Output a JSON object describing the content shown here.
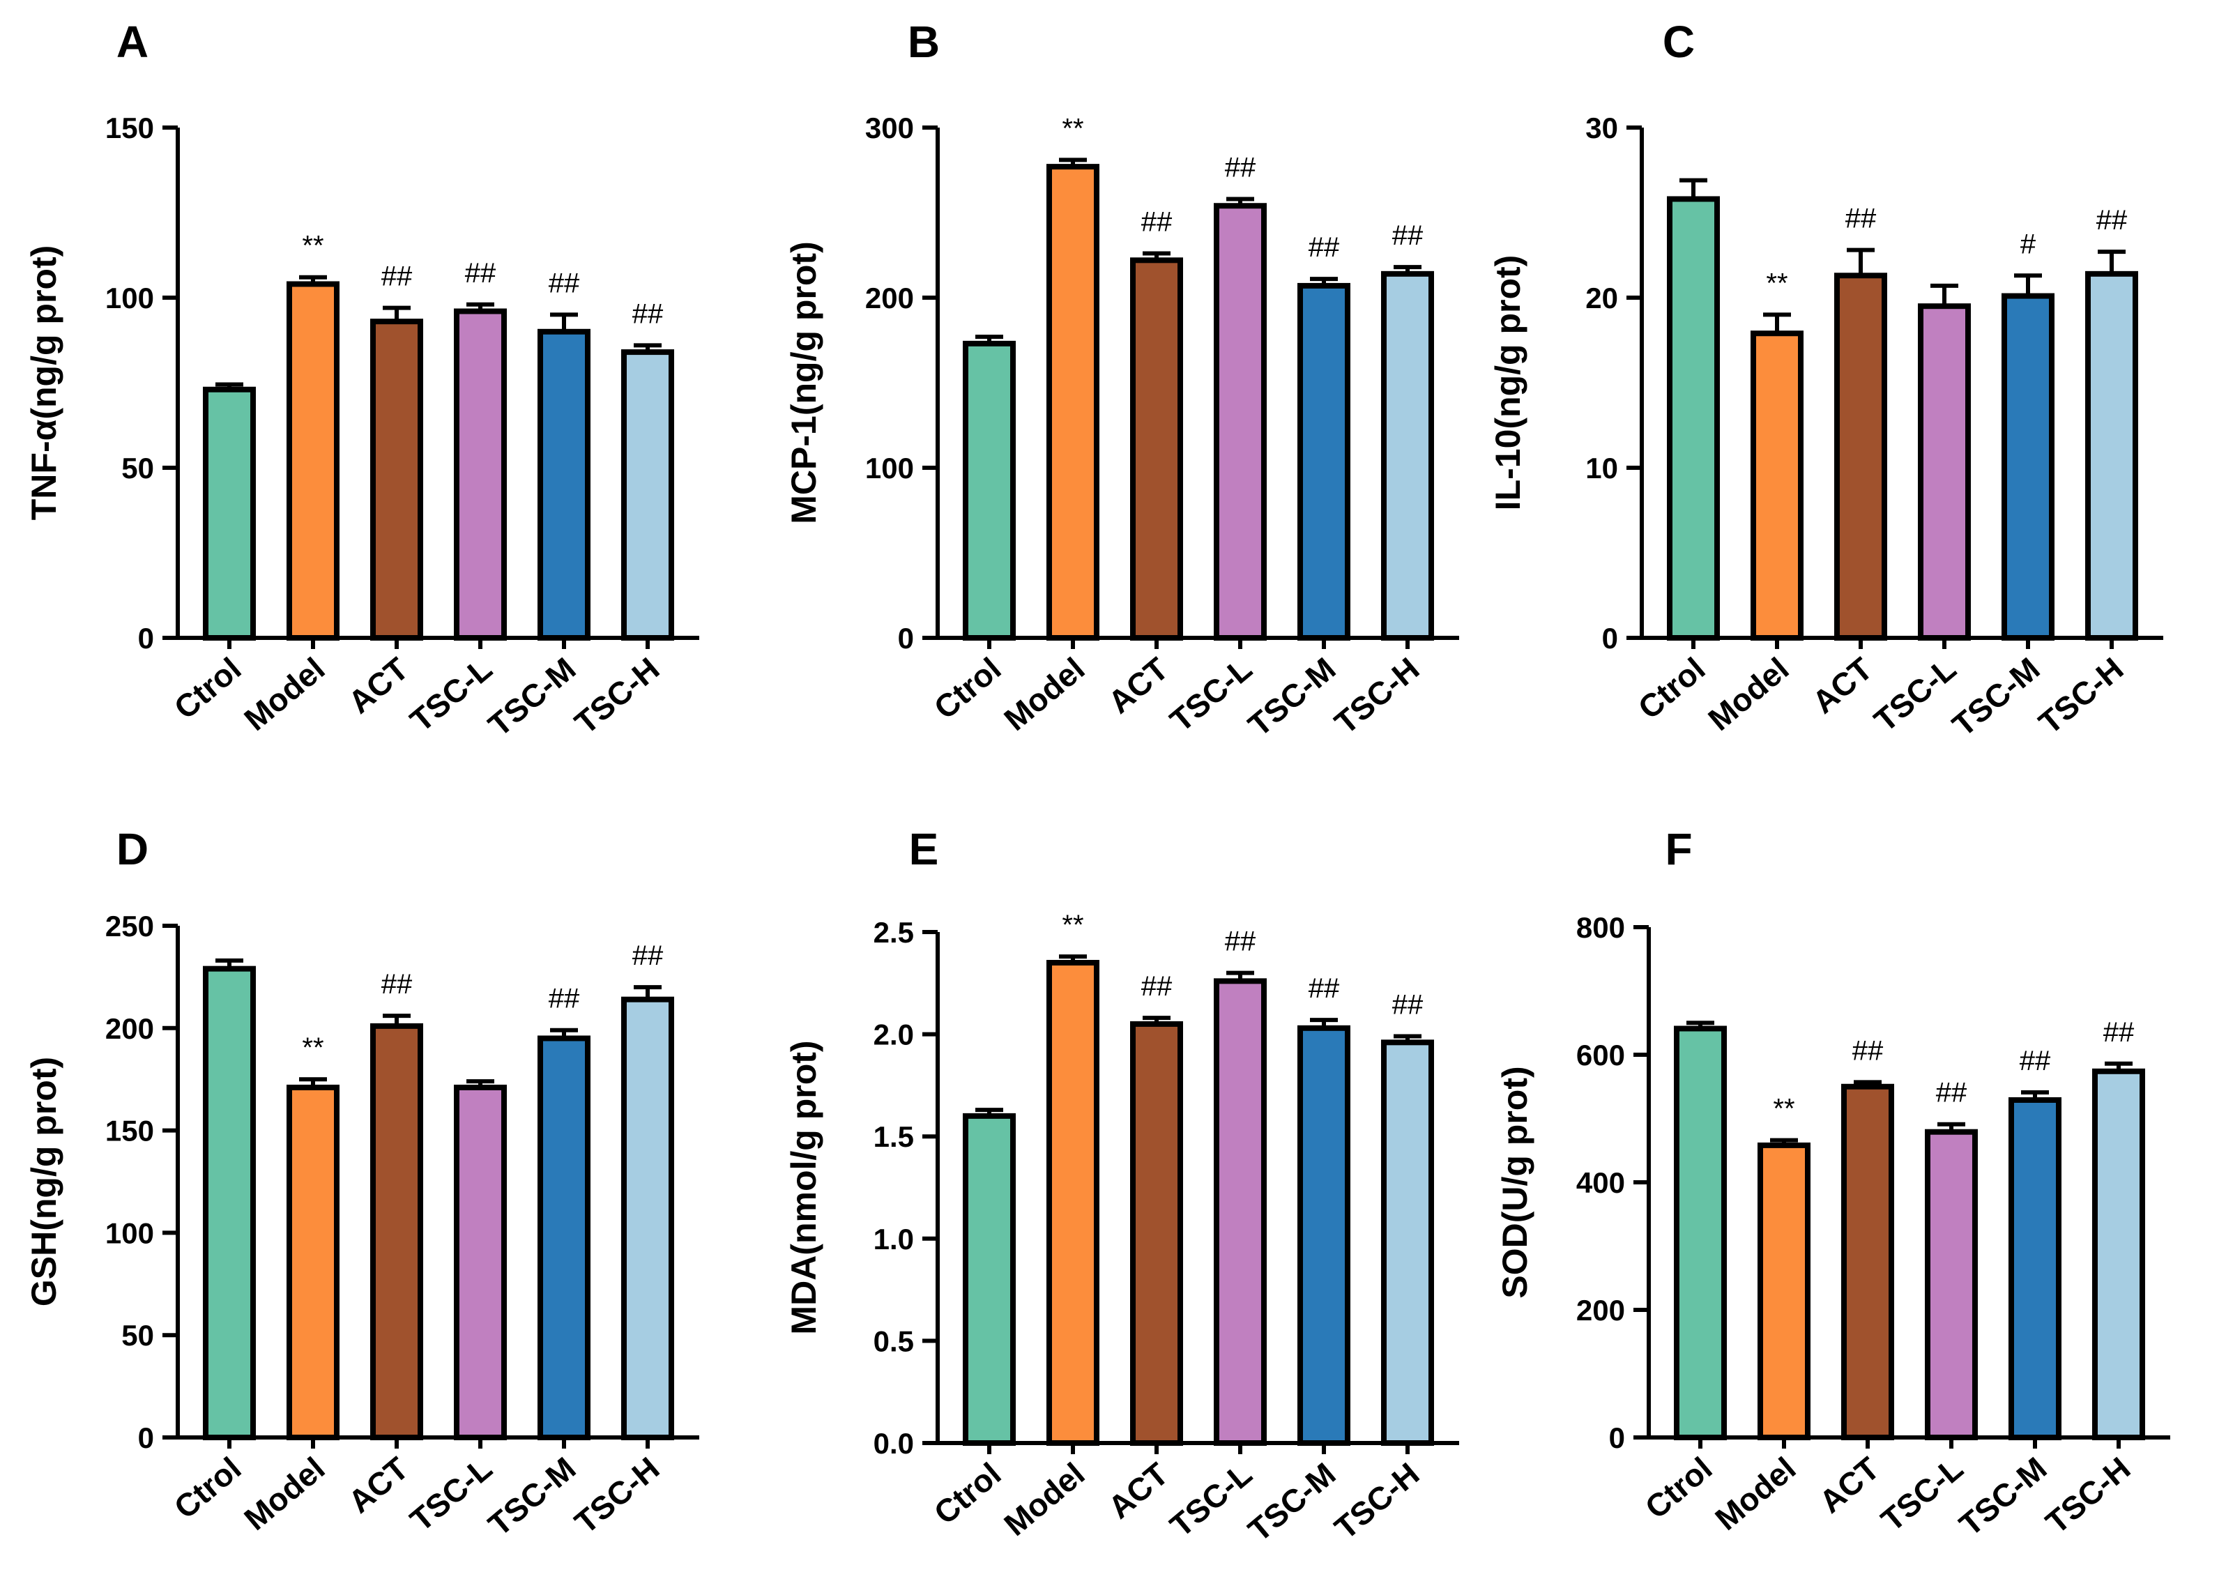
{
  "chart_data": [
    {
      "panel": "A",
      "type": "bar",
      "categories": [
        "Ctrol",
        "Model",
        "ACT",
        "TSC-L",
        "TSC-M",
        "TSC-H"
      ],
      "values": [
        73,
        104,
        93,
        96,
        90,
        84
      ],
      "errors": [
        1.5,
        2,
        4,
        2,
        5,
        2
      ],
      "annotations": [
        "",
        "**",
        "##",
        "##",
        "##",
        "##"
      ],
      "ylabel": "TNF-α(ng/g prot)",
      "ylim": [
        0,
        150
      ],
      "yticks": [
        0,
        50,
        100,
        150
      ]
    },
    {
      "panel": "B",
      "type": "bar",
      "categories": [
        "Ctrol",
        "Model",
        "ACT",
        "TSC-L",
        "TSC-M",
        "TSC-H"
      ],
      "values": [
        173,
        277,
        222,
        254,
        207,
        214
      ],
      "errors": [
        4,
        4,
        4,
        4,
        4,
        4
      ],
      "annotations": [
        "",
        "**",
        "##",
        "##",
        "##",
        "##"
      ],
      "ylabel": "MCP-1(ng/g prot)",
      "ylim": [
        0,
        300
      ],
      "yticks": [
        0,
        100,
        200,
        300
      ]
    },
    {
      "panel": "C",
      "type": "bar",
      "categories": [
        "Ctrol",
        "Model",
        "ACT",
        "TSC-L",
        "TSC-M",
        "TSC-H"
      ],
      "values": [
        25.8,
        17.9,
        21.3,
        19.5,
        20.1,
        21.4
      ],
      "errors": [
        1.1,
        1.1,
        1.5,
        1.2,
        1.2,
        1.3
      ],
      "annotations": [
        "",
        "**",
        "##",
        "",
        "#",
        "##"
      ],
      "ylabel": "IL-10(ng/g prot)",
      "ylim": [
        0,
        30
      ],
      "yticks": [
        0,
        10,
        20,
        30
      ]
    },
    {
      "panel": "D",
      "type": "bar",
      "categories": [
        "Ctrol",
        "Model",
        "ACT",
        "TSC-L",
        "TSC-M",
        "TSC-H"
      ],
      "values": [
        229,
        171,
        201,
        171,
        195,
        214
      ],
      "errors": [
        4,
        4,
        5,
        3,
        4,
        6
      ],
      "annotations": [
        "",
        "**",
        "##",
        "",
        "##",
        "##"
      ],
      "ylabel": "GSH(ng/g prot)",
      "ylim": [
        0,
        250
      ],
      "yticks": [
        0,
        50,
        100,
        150,
        200,
        250
      ]
    },
    {
      "panel": "E",
      "type": "bar",
      "categories": [
        "Ctrol",
        "Model",
        "ACT",
        "TSC-L",
        "TSC-M",
        "TSC-H"
      ],
      "values": [
        1.6,
        2.35,
        2.05,
        2.26,
        2.03,
        1.96
      ],
      "errors": [
        0.03,
        0.03,
        0.03,
        0.04,
        0.04,
        0.03
      ],
      "annotations": [
        "",
        "**",
        "##",
        "##",
        "##",
        "##"
      ],
      "ylabel": "MDA(nmol/g prot)",
      "ylim": [
        0,
        2.5
      ],
      "yticks": [
        0.0,
        0.5,
        1.0,
        1.5,
        2.0,
        2.5
      ]
    },
    {
      "panel": "F",
      "type": "bar",
      "categories": [
        "Ctrol",
        "Model",
        "ACT",
        "TSC-L",
        "TSC-M",
        "TSC-H"
      ],
      "values": [
        641,
        458,
        550,
        479,
        529,
        574
      ],
      "errors": [
        9,
        8,
        7,
        12,
        12,
        12
      ],
      "annotations": [
        "",
        "**",
        "##",
        "##",
        "##",
        "##"
      ],
      "ylabel": "SOD(U/g prot)",
      "ylim": [
        0,
        800
      ],
      "yticks": [
        0,
        200,
        400,
        600,
        800
      ]
    }
  ],
  "tick_labels": {
    "A": [
      "0",
      "50",
      "100",
      "150"
    ],
    "B": [
      "0",
      "100",
      "200",
      "300"
    ],
    "C": [
      "0",
      "10",
      "20",
      "30"
    ],
    "D": [
      "0",
      "50",
      "100",
      "150",
      "200",
      "250"
    ],
    "E": [
      "0.0",
      "0.5",
      "1.0",
      "1.5",
      "2.0",
      "2.5"
    ],
    "F": [
      "0",
      "200",
      "400",
      "600",
      "800"
    ]
  },
  "colors": {
    "Ctrol": "#66c2a5",
    "Model": "#fc8d3c",
    "ACT": "#a0522d",
    "TSC-L": "#c080c0",
    "TSC-M": "#2a7ab8",
    "TSC-H": "#a6cde2"
  }
}
